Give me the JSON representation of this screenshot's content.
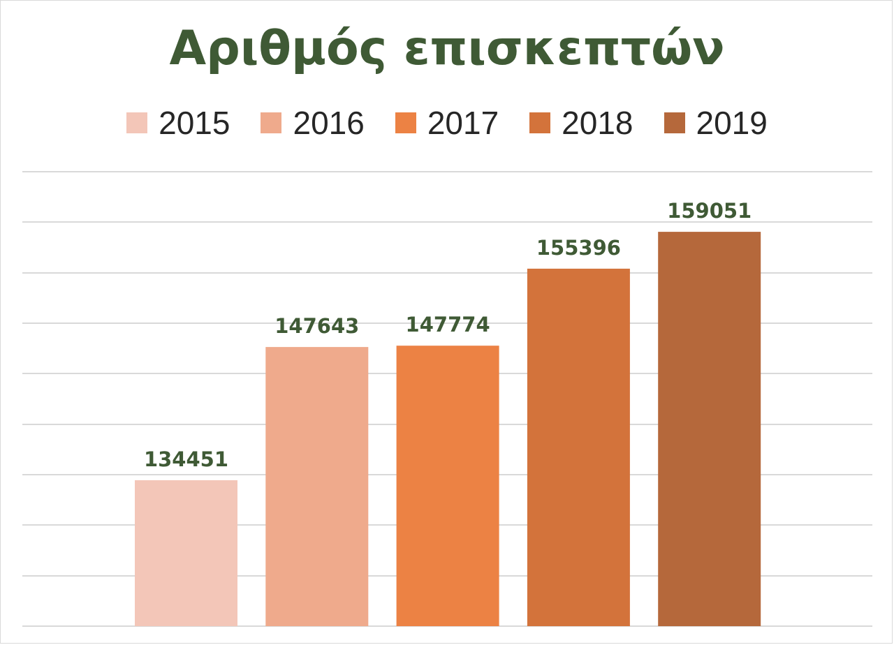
{
  "chart_data": {
    "type": "bar",
    "title": "Αριθμός επισκεπτών",
    "categories": [
      "2015",
      "2016",
      "2017",
      "2018",
      "2019"
    ],
    "values": [
      134451,
      147643,
      147774,
      155396,
      159051
    ],
    "colors": [
      "#f3c6b8",
      "#efaa8c",
      "#ec8244",
      "#d3733b",
      "#b5683b"
    ],
    "xlabel": "",
    "ylabel": "",
    "ylim": [
      120000,
      165000
    ],
    "grid_step": 5000,
    "grid": true,
    "legend": "top",
    "data_label_color": "#3f5a35",
    "title_color": "#3f5a35"
  }
}
